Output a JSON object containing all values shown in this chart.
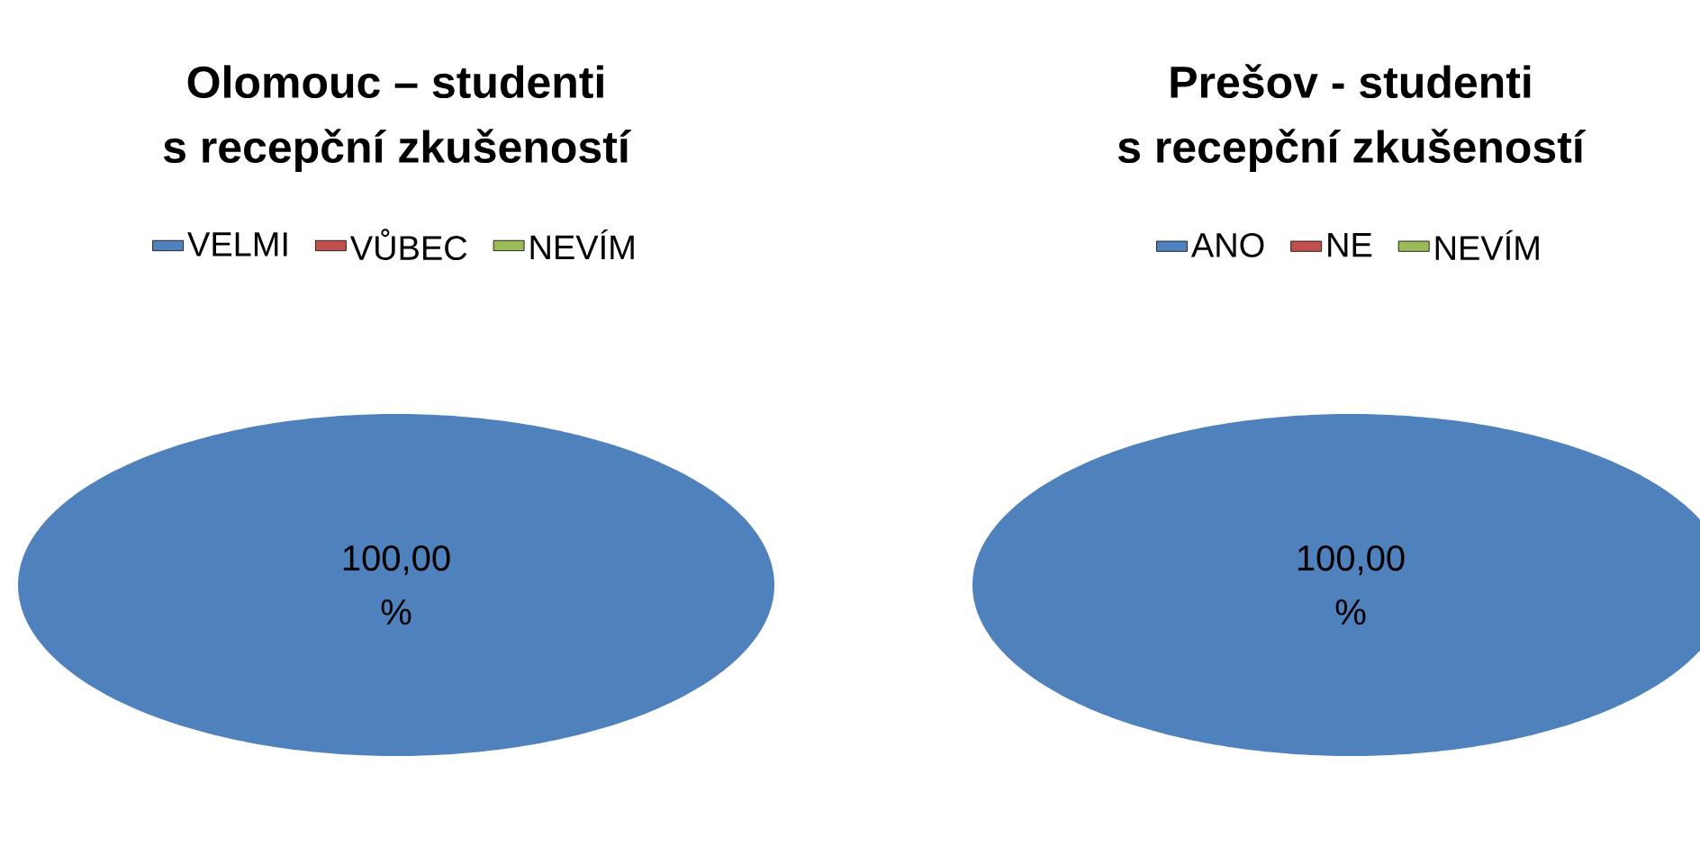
{
  "chart_data": [
    {
      "type": "pie",
      "title": "Olomouc – studenti",
      "subtitle": "s recepční zkušeností",
      "categories": [
        "VELMI",
        "VŮBEC",
        "NEVÍM"
      ],
      "values": [
        100,
        0,
        0
      ],
      "colors": [
        "#4f81bd",
        "#c0504d",
        "#9bbb59"
      ],
      "value_labels": [
        "100,00 %",
        null,
        null
      ],
      "legend": "top"
    },
    {
      "type": "pie",
      "title": "Prešov - studenti",
      "subtitle": "s recepční zkušeností",
      "categories": [
        "ANO",
        "NE",
        "NEVÍM"
      ],
      "values": [
        100,
        0,
        0
      ],
      "colors": [
        "#4f81bd",
        "#c0504d",
        "#9bbb59"
      ],
      "value_labels": [
        "100,00 %",
        null,
        null
      ],
      "legend": "top"
    }
  ]
}
